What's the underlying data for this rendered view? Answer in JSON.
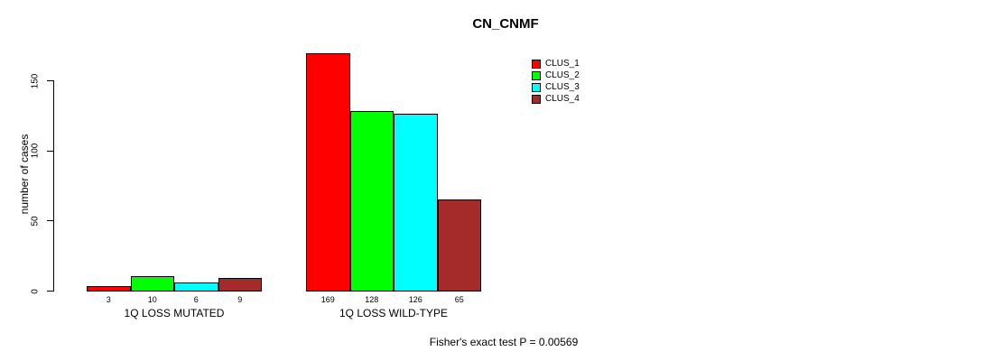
{
  "chart_data": {
    "type": "bar",
    "title": "CN_CNMF",
    "ylabel": "number of cases",
    "xlabel": "",
    "footnote": "Fisher's exact test P = 0.00569",
    "groups": [
      "1Q LOSS MUTATED",
      "1Q LOSS WILD-TYPE"
    ],
    "series": [
      {
        "name": "CLUS_1",
        "color": "#FF0000",
        "values": [
          3,
          169
        ]
      },
      {
        "name": "CLUS_2",
        "color": "#00FF00",
        "values": [
          10,
          128
        ]
      },
      {
        "name": "CLUS_3",
        "color": "#00FFFF",
        "values": [
          6,
          126
        ]
      },
      {
        "name": "CLUS_4",
        "color": "#A52A2A",
        "values": [
          9,
          65
        ]
      }
    ],
    "yticks": [
      0,
      50,
      100,
      150
    ],
    "ylim": [
      0,
      175
    ],
    "grid": false,
    "legend_position": "right",
    "bar_border_color": "#000000",
    "background_color": "#FFFFFF"
  }
}
